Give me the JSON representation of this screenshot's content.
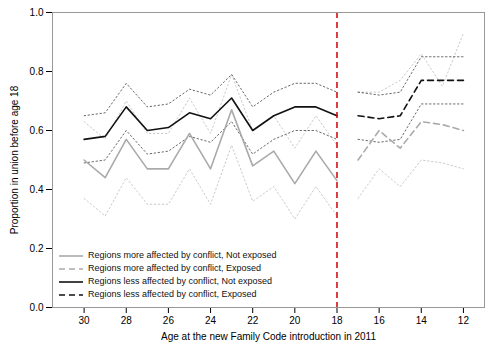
{
  "chart_data": {
    "type": "line",
    "xlabel": "Age at the new Family Code introduction in 2011",
    "ylabel": "Proportion in union before age 18",
    "xlim": [
      31.5,
      11.0
    ],
    "xticks": [
      30,
      28,
      26,
      24,
      22,
      20,
      18,
      16,
      14,
      12
    ],
    "ylim": [
      0.0,
      1.0
    ],
    "yticks": [
      {
        "value": 0,
        "label": "0.0"
      },
      0.2,
      0.4,
      0.6,
      0.8,
      {
        "value": 1,
        "label": "1.0"
      }
    ],
    "grid": false,
    "legend": "lower left",
    "vline": {
      "x": 18,
      "color": "#cc0000",
      "line_style": "dashed"
    },
    "series": [
      {
        "name": "Regions more affected by conflict, Not exposed",
        "color": "#aaaaaa",
        "line_style": "solid",
        "x": [
          30,
          29,
          28,
          27,
          26,
          25,
          24,
          23,
          22,
          21,
          20,
          19,
          18
        ],
        "values": [
          0.5,
          0.44,
          0.57,
          0.47,
          0.47,
          0.59,
          0.47,
          0.67,
          0.48,
          0.53,
          0.42,
          0.53,
          0.43
        ],
        "lo": [
          0.37,
          0.31,
          0.44,
          0.35,
          0.35,
          0.47,
          0.35,
          0.55,
          0.36,
          0.41,
          0.3,
          0.41,
          0.31
        ],
        "hi": [
          0.63,
          0.57,
          0.7,
          0.59,
          0.59,
          0.71,
          0.59,
          0.79,
          0.6,
          0.65,
          0.54,
          0.65,
          0.55
        ]
      },
      {
        "name": "Regions more affected by conflict, Exposed",
        "color": "#aaaaaa",
        "line_style": "dashed",
        "x": [
          17,
          16,
          15,
          14,
          13,
          12
        ],
        "values": [
          0.5,
          0.6,
          0.54,
          0.63,
          0.62,
          0.6
        ],
        "lo": [
          0.37,
          0.47,
          0.41,
          0.5,
          0.49,
          0.47
        ],
        "hi": [
          0.73,
          0.73,
          0.77,
          0.86,
          0.75,
          0.93
        ]
      },
      {
        "name": "Regions less affected by conflict, Not exposed",
        "color": "#111111",
        "line_style": "solid",
        "x": [
          30,
          29,
          28,
          27,
          26,
          25,
          24,
          23,
          22,
          21,
          20,
          19,
          18
        ],
        "values": [
          0.57,
          0.58,
          0.68,
          0.6,
          0.61,
          0.66,
          0.64,
          0.71,
          0.6,
          0.65,
          0.68,
          0.68,
          0.65
        ],
        "lo": [
          0.49,
          0.5,
          0.6,
          0.52,
          0.53,
          0.58,
          0.56,
          0.63,
          0.52,
          0.57,
          0.6,
          0.6,
          0.57
        ],
        "hi": [
          0.65,
          0.66,
          0.76,
          0.68,
          0.69,
          0.74,
          0.72,
          0.79,
          0.68,
          0.73,
          0.76,
          0.76,
          0.73
        ]
      },
      {
        "name": "Regions less affected by conflict, Exposed",
        "color": "#111111",
        "line_style": "dashed",
        "x": [
          17,
          16,
          15,
          14,
          13,
          12
        ],
        "values": [
          0.65,
          0.64,
          0.65,
          0.77,
          0.77,
          0.77
        ],
        "lo": [
          0.57,
          0.56,
          0.57,
          0.69,
          0.69,
          0.69
        ],
        "hi": [
          0.73,
          0.72,
          0.73,
          0.85,
          0.85,
          0.85
        ]
      }
    ]
  }
}
